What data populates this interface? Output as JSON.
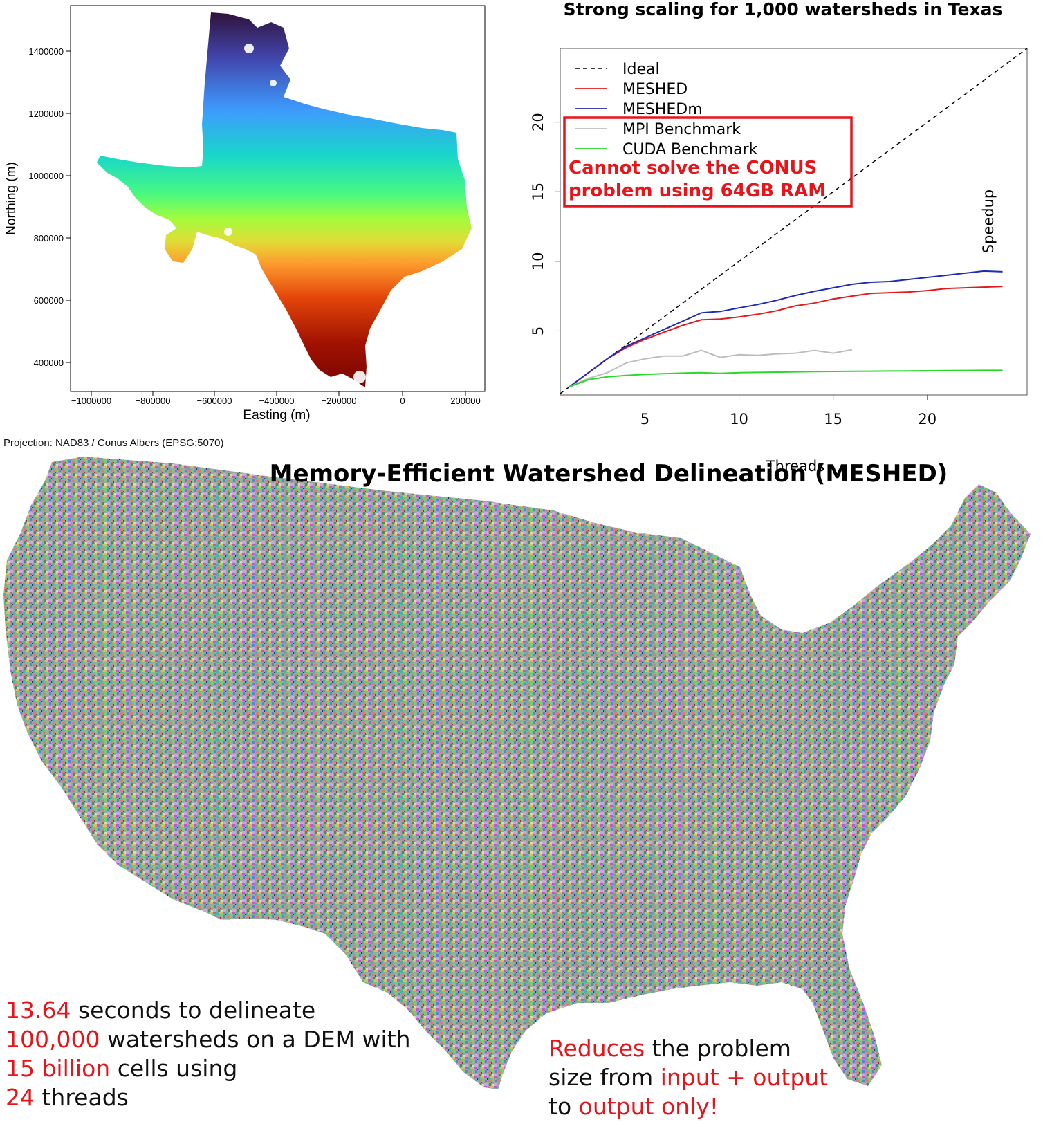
{
  "map_panel": {
    "title": "",
    "xlabel": "Easting (m)",
    "ylabel": "Northing (m)",
    "x_ticks": [
      "−1000000",
      "−800000",
      "−600000",
      "−400000",
      "−200000",
      "0",
      "200000"
    ],
    "y_ticks": [
      "1400000",
      "1200000",
      "1000000",
      "800000",
      "600000",
      "400000"
    ],
    "projection_note": "Projection: NAD83 / Conus Albers (EPSG:5070)",
    "colormap": [
      "#30123b",
      "#4145ab",
      "#3e9bfe",
      "#18d6cb",
      "#46f884",
      "#a2fc3c",
      "#e1dd37",
      "#fe9b2d",
      "#e4460a",
      "#a11201",
      "#7a0403"
    ]
  },
  "chart_data": {
    "type": "line",
    "title": "Strong scaling for 1,000 watersheds in Texas",
    "xlabel": "Threads",
    "ylabel": "Speedup",
    "xlim": [
      0.5,
      25.3
    ],
    "ylim": [
      0.4,
      25.3
    ],
    "x_ticks": [
      5,
      10,
      15,
      20
    ],
    "y_ticks": [
      5,
      10,
      15,
      20
    ],
    "legend_position": "top-left",
    "series": [
      {
        "name": "Ideal",
        "color": "#000000",
        "dash": true,
        "x": [
          0.5,
          25.3
        ],
        "y": [
          0.5,
          25.3
        ]
      },
      {
        "name": "MESHED",
        "color": "#e31a1c",
        "x": [
          1,
          2,
          3,
          4,
          5,
          6,
          7,
          8,
          9,
          10,
          11,
          12,
          13,
          14,
          15,
          16,
          17,
          18,
          19,
          20,
          21,
          22,
          23,
          24
        ],
        "y": [
          1.0,
          2.0,
          3.0,
          3.8,
          4.4,
          4.9,
          5.4,
          5.8,
          5.85,
          6.0,
          6.2,
          6.45,
          6.8,
          7.0,
          7.3,
          7.5,
          7.7,
          7.75,
          7.8,
          7.9,
          8.05,
          8.1,
          8.15,
          8.2
        ]
      },
      {
        "name": "MESHEDm",
        "color": "#1f2bb5",
        "x": [
          1,
          2,
          3,
          4,
          5,
          6,
          7,
          8,
          9,
          10,
          11,
          12,
          13,
          14,
          15,
          16,
          17,
          18,
          19,
          20,
          21,
          22,
          23,
          24
        ],
        "y": [
          1.0,
          2.0,
          3.0,
          3.9,
          4.5,
          5.1,
          5.7,
          6.3,
          6.4,
          6.65,
          6.9,
          7.2,
          7.55,
          7.85,
          8.1,
          8.35,
          8.5,
          8.55,
          8.7,
          8.85,
          9.0,
          9.15,
          9.3,
          9.25
        ]
      },
      {
        "name": "MPI Benchmark",
        "color": "#bdbdbd",
        "x": [
          1,
          2,
          3,
          4,
          5,
          6,
          7,
          8,
          9,
          10,
          11,
          12,
          13,
          14,
          15,
          16
        ],
        "y": [
          1.0,
          1.6,
          2.0,
          2.7,
          3.0,
          3.2,
          3.2,
          3.6,
          3.1,
          3.3,
          3.25,
          3.35,
          3.4,
          3.6,
          3.4,
          3.65
        ]
      },
      {
        "name": "CUDA Benchmark",
        "color": "#2ad82a",
        "x": [
          1,
          2,
          3,
          4,
          5,
          6,
          7,
          8,
          9,
          10,
          11,
          12,
          13,
          14,
          15,
          16,
          17,
          18,
          19,
          20,
          21,
          22,
          23,
          24
        ],
        "y": [
          1.0,
          1.5,
          1.7,
          1.8,
          1.88,
          1.93,
          1.97,
          2.0,
          1.95,
          2.0,
          2.02,
          2.04,
          2.06,
          2.08,
          2.09,
          2.1,
          2.11,
          2.12,
          2.13,
          2.14,
          2.15,
          2.16,
          2.17,
          2.17
        ]
      }
    ],
    "annotation": {
      "line1": "Cannot solve the CONUS",
      "line2": "problem using 64GB RAM",
      "color": "#e8141a"
    }
  },
  "conus": {
    "title": "Memory-Efficient Watershed Delineation (MESHED)"
  },
  "stats": {
    "line1_value": "13.64",
    "line1_text": " seconds to delineate",
    "line2_value": "100,000",
    "line2_text": " watersheds on a DEM with",
    "line3_value": "15 billion",
    "line3_text": " cells using",
    "line4_value": "24",
    "line4_text": " threads"
  },
  "claim": {
    "line1_red": "Reduces",
    "line1_text": " the problem",
    "line2_text": "size from ",
    "line2_red": "input + output",
    "line3_text": "to ",
    "line3_red": "output only!"
  }
}
